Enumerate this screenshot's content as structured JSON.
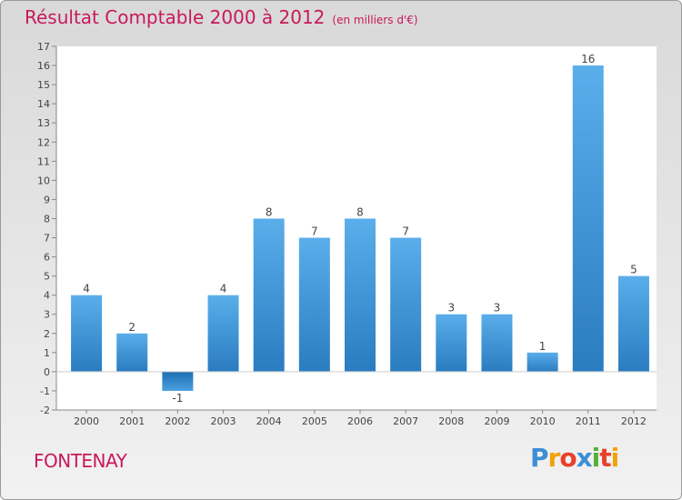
{
  "header": {
    "title": "Résultat Comptable 2000 à 2012",
    "subtitle": "(en milliers d'€)"
  },
  "footer": {
    "town": "FONTENAY",
    "logo_letters": [
      "P",
      "r",
      "o",
      "x",
      "i",
      "t",
      "i"
    ],
    "logo_colors": [
      "#3b8fd6",
      "#f0a30a",
      "#e8402a",
      "#3b8fd6",
      "#55b03a",
      "#e8402a",
      "#f0a30a"
    ]
  },
  "colors": {
    "title": "#c8195a",
    "bar_light": "#5aaeea",
    "bar_dark": "#2a7cc0",
    "bar_negative": "#2b7fc4"
  },
  "chart_data": {
    "type": "bar",
    "title": "Résultat Comptable 2000 à 2012",
    "xlabel": "",
    "ylabel": "(en milliers d'€)",
    "categories": [
      "2000",
      "2001",
      "2002",
      "2003",
      "2004",
      "2005",
      "2006",
      "2007",
      "2008",
      "2009",
      "2010",
      "2011",
      "2012"
    ],
    "values": [
      4,
      2,
      -1,
      4,
      8,
      7,
      8,
      7,
      3,
      3,
      1,
      16,
      5
    ],
    "labels": [
      "4",
      "2",
      "-1",
      "4",
      "8",
      "7",
      "8",
      "7",
      "3",
      "3",
      "1",
      "16",
      "5"
    ],
    "ylim": [
      -2,
      17
    ],
    "yticks": [
      -2,
      -1,
      0,
      1,
      2,
      3,
      4,
      5,
      6,
      7,
      8,
      9,
      10,
      11,
      12,
      13,
      14,
      15,
      16,
      17
    ],
    "ytick_labels": [
      "-2",
      "-1",
      "0",
      "1",
      "2",
      "3",
      "4",
      "5",
      "6",
      "7",
      "8",
      "9",
      "10",
      "11",
      "12",
      "13",
      "14",
      "15",
      "16",
      "17"
    ],
    "grid": false,
    "legend": "none"
  }
}
